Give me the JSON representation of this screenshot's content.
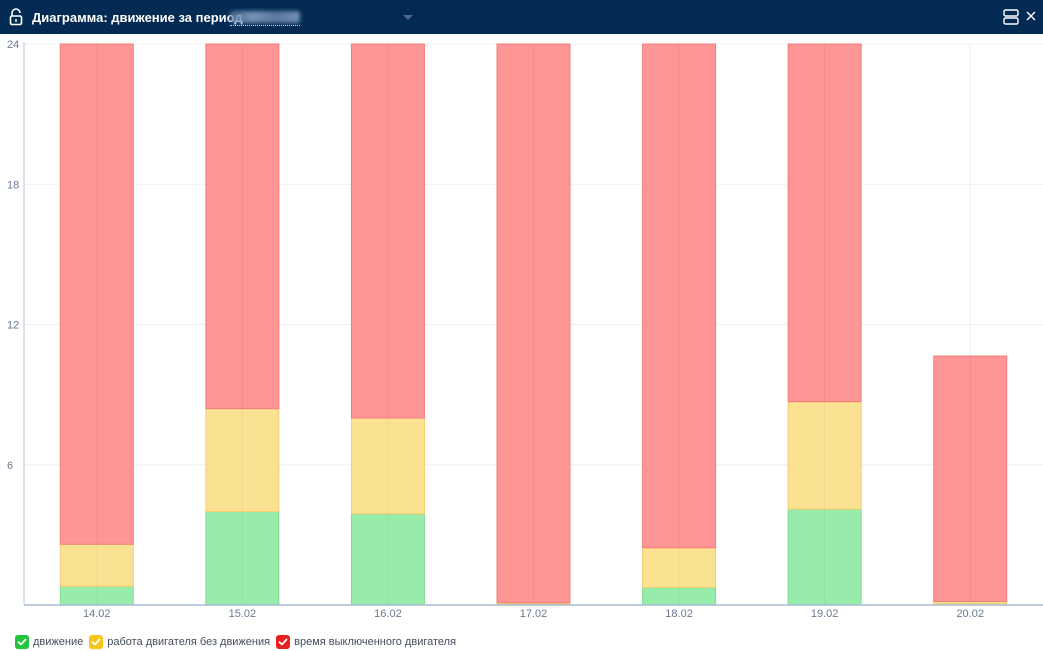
{
  "window": {
    "title": "Диаграмма: движение за период",
    "period_value": "",
    "lock_icon": "unlock-icon",
    "layout_icon": "layout-toggle-icon",
    "close_icon": "close-icon"
  },
  "colors": {
    "titlebar": "#022a52",
    "movement": "#98eca9",
    "movement_stroke": "#7fdc92",
    "idle": "#fbe293",
    "idle_stroke": "#f3cf6e",
    "off": "#ff9696",
    "off_stroke": "#f47b7b",
    "legend_movement": "#21c53a",
    "legend_idle": "#f5c518",
    "legend_off": "#e8201e"
  },
  "legend": [
    {
      "label": "движение",
      "key": "movement",
      "checked": true
    },
    {
      "label": "работа двигателя без движения",
      "key": "idle",
      "checked": true
    },
    {
      "label": "время выключенного двигателя",
      "key": "off",
      "checked": true
    }
  ],
  "chart_data": {
    "type": "bar",
    "stacked": true,
    "categories": [
      "14.02",
      "15.02",
      "16.02",
      "17.02",
      "18.02",
      "19.02",
      "20.02"
    ],
    "series": [
      {
        "name": "движение",
        "key": "movement",
        "values": [
          0.8,
          4.0,
          3.9,
          0.05,
          0.75,
          4.1,
          0.05
        ]
      },
      {
        "name": "работа двигателя без движения",
        "key": "idle",
        "values": [
          1.8,
          4.4,
          4.1,
          0.05,
          1.7,
          4.6,
          0.1
        ]
      },
      {
        "name": "время выключенного двигателя",
        "key": "off",
        "values": [
          21.4,
          15.6,
          16.0,
          23.9,
          21.55,
          15.3,
          10.5
        ]
      }
    ],
    "yticks": [
      6,
      12,
      18,
      24
    ],
    "ylim": [
      0,
      24
    ],
    "grid": true,
    "legend_position": "bottom-left"
  }
}
